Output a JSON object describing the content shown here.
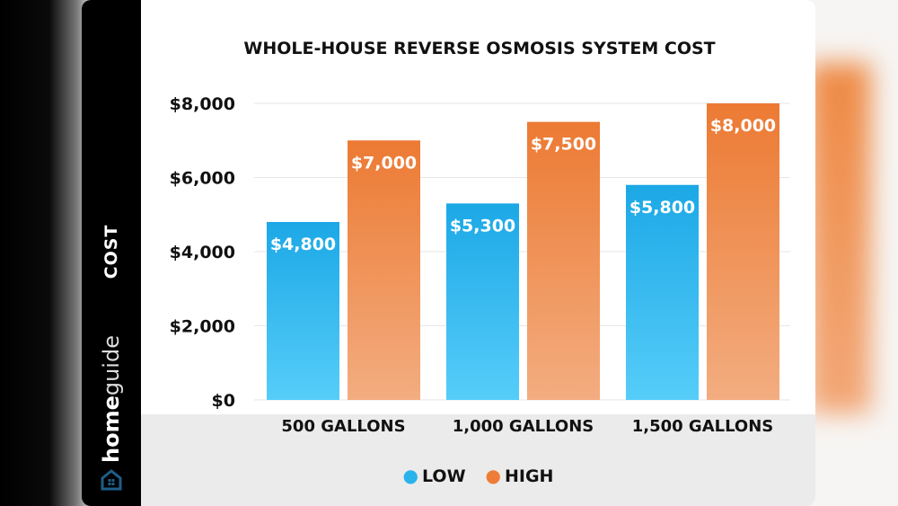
{
  "chart_data": {
    "type": "bar",
    "title": "WHOLE-HOUSE REVERSE OSMOSIS SYSTEM COST",
    "ylabel": "COST",
    "xlabel": "",
    "categories": [
      "500 GALLONS",
      "1,000 GALLONS",
      "1,500 GALLONS"
    ],
    "series": [
      {
        "name": "LOW",
        "values": [
          4800,
          5300,
          5800
        ],
        "data_labels": [
          "$4,800",
          "$5,300",
          "$5,800"
        ],
        "color": "#29b3ea"
      },
      {
        "name": "HIGH",
        "values": [
          7000,
          7500,
          8000
        ],
        "data_labels": [
          "$7,000",
          "$7,500",
          "$8,000"
        ],
        "color": "#ed7d37"
      }
    ],
    "ylim": [
      0,
      8000
    ],
    "yticks": [
      0,
      2000,
      4000,
      6000,
      8000
    ],
    "ytick_labels": [
      "$0",
      "$2,000",
      "$4,000",
      "$6,000",
      "$8,000"
    ],
    "grid": true,
    "legend_placement": "bottom"
  },
  "brand": {
    "bold": "home",
    "light": "guide",
    "icon": "house-icon",
    "color": "#1d5f8a"
  }
}
